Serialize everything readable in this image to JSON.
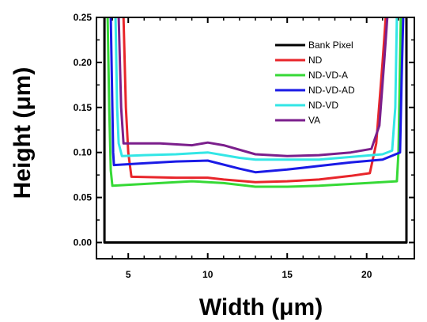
{
  "chart_data": {
    "type": "line",
    "xlabel": "Width (μm)",
    "ylabel": "Height (μm)",
    "xlim": [
      3.0,
      23.0
    ],
    "ylim": [
      -0.018,
      0.25
    ],
    "x_ticks": [
      5,
      10,
      15,
      20
    ],
    "x_tick_labels": [
      "5",
      "10",
      "15",
      "20"
    ],
    "y_ticks": [
      0.0,
      0.05,
      0.1,
      0.15,
      0.2,
      0.25
    ],
    "y_tick_labels": [
      "0.00",
      "0.05",
      "0.10",
      "0.15",
      "0.20",
      "0.25"
    ],
    "grid": false,
    "legend_position": "top-right",
    "series": [
      {
        "name": "Bank Pixel",
        "color": "#000000",
        "points": [
          [
            3.5,
            0.25
          ],
          [
            3.5,
            0.0
          ],
          [
            22.5,
            0.0
          ],
          [
            22.5,
            0.25
          ]
        ]
      },
      {
        "name": "ND",
        "color": "#e8262b",
        "points": [
          [
            4.7,
            0.25
          ],
          [
            4.85,
            0.15
          ],
          [
            5.0,
            0.1
          ],
          [
            5.2,
            0.073
          ],
          [
            8,
            0.072
          ],
          [
            10,
            0.072
          ],
          [
            11,
            0.07
          ],
          [
            13,
            0.067
          ],
          [
            15,
            0.068
          ],
          [
            17,
            0.07
          ],
          [
            19,
            0.074
          ],
          [
            20.2,
            0.077
          ],
          [
            20.6,
            0.11
          ],
          [
            21.0,
            0.2
          ],
          [
            21.2,
            0.25
          ]
        ]
      },
      {
        "name": "ND-VD-A",
        "color": "#36d936",
        "points": [
          [
            3.7,
            0.25
          ],
          [
            3.8,
            0.15
          ],
          [
            3.9,
            0.08
          ],
          [
            4.0,
            0.063
          ],
          [
            6,
            0.065
          ],
          [
            9,
            0.068
          ],
          [
            11,
            0.066
          ],
          [
            13,
            0.062
          ],
          [
            15,
            0.062
          ],
          [
            17,
            0.063
          ],
          [
            20,
            0.066
          ],
          [
            21.9,
            0.068
          ],
          [
            22.0,
            0.1
          ],
          [
            22.1,
            0.2
          ],
          [
            22.15,
            0.25
          ]
        ]
      },
      {
        "name": "ND-VD-AD",
        "color": "#1a1ae6",
        "points": [
          [
            3.9,
            0.25
          ],
          [
            4.0,
            0.15
          ],
          [
            4.05,
            0.1
          ],
          [
            4.1,
            0.086
          ],
          [
            6,
            0.088
          ],
          [
            8,
            0.09
          ],
          [
            10,
            0.091
          ],
          [
            12,
            0.082
          ],
          [
            13,
            0.078
          ],
          [
            15,
            0.081
          ],
          [
            17,
            0.085
          ],
          [
            19,
            0.089
          ],
          [
            21,
            0.092
          ],
          [
            22.1,
            0.1
          ],
          [
            22.2,
            0.18
          ],
          [
            22.3,
            0.25
          ]
        ]
      },
      {
        "name": "ND-VD",
        "color": "#33e6e6",
        "points": [
          [
            4.2,
            0.25
          ],
          [
            4.3,
            0.15
          ],
          [
            4.4,
            0.11
          ],
          [
            4.6,
            0.096
          ],
          [
            6,
            0.097
          ],
          [
            8,
            0.098
          ],
          [
            10,
            0.1
          ],
          [
            12,
            0.094
          ],
          [
            13,
            0.092
          ],
          [
            15,
            0.092
          ],
          [
            17,
            0.092
          ],
          [
            19,
            0.095
          ],
          [
            21,
            0.098
          ],
          [
            21.6,
            0.102
          ],
          [
            21.8,
            0.15
          ],
          [
            21.9,
            0.25
          ]
        ]
      },
      {
        "name": "VA",
        "color": "#7b1f8c",
        "points": [
          [
            4.4,
            0.25
          ],
          [
            4.55,
            0.15
          ],
          [
            4.7,
            0.11
          ],
          [
            5.0,
            0.11
          ],
          [
            7,
            0.11
          ],
          [
            9,
            0.108
          ],
          [
            10,
            0.111
          ],
          [
            11,
            0.108
          ],
          [
            13,
            0.098
          ],
          [
            15,
            0.096
          ],
          [
            17,
            0.097
          ],
          [
            19,
            0.1
          ],
          [
            20.3,
            0.104
          ],
          [
            20.8,
            0.13
          ],
          [
            21.1,
            0.2
          ],
          [
            21.3,
            0.25
          ]
        ]
      }
    ]
  }
}
